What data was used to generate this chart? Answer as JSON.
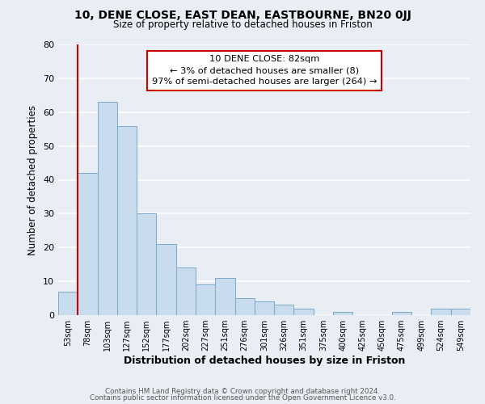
{
  "title": "10, DENE CLOSE, EAST DEAN, EASTBOURNE, BN20 0JJ",
  "subtitle": "Size of property relative to detached houses in Friston",
  "xlabel": "Distribution of detached houses by size in Friston",
  "ylabel": "Number of detached properties",
  "bar_color": "#c8dcee",
  "bar_edge_color": "#7aaac8",
  "background_color": "#e8eef4",
  "grid_color": "#ffffff",
  "categories": [
    "53sqm",
    "78sqm",
    "103sqm",
    "127sqm",
    "152sqm",
    "177sqm",
    "202sqm",
    "227sqm",
    "251sqm",
    "276sqm",
    "301sqm",
    "326sqm",
    "351sqm",
    "375sqm",
    "400sqm",
    "425sqm",
    "450sqm",
    "475sqm",
    "499sqm",
    "524sqm",
    "549sqm"
  ],
  "values": [
    7,
    42,
    63,
    56,
    30,
    21,
    14,
    9,
    11,
    5,
    4,
    3,
    2,
    0,
    1,
    0,
    0,
    1,
    0,
    2,
    2
  ],
  "ylim": [
    0,
    80
  ],
  "yticks": [
    0,
    10,
    20,
    30,
    40,
    50,
    60,
    70,
    80
  ],
  "vline_x": 1.5,
  "vline_color": "#cc0000",
  "annotation_line1": "10 DENE CLOSE: 82sqm",
  "annotation_line2": "← 3% of detached houses are smaller (8)",
  "annotation_line3": "97% of semi-detached houses are larger (264) →",
  "footer_line1": "Contains HM Land Registry data © Crown copyright and database right 2024.",
  "footer_line2": "Contains public sector information licensed under the Open Government Licence v3.0."
}
